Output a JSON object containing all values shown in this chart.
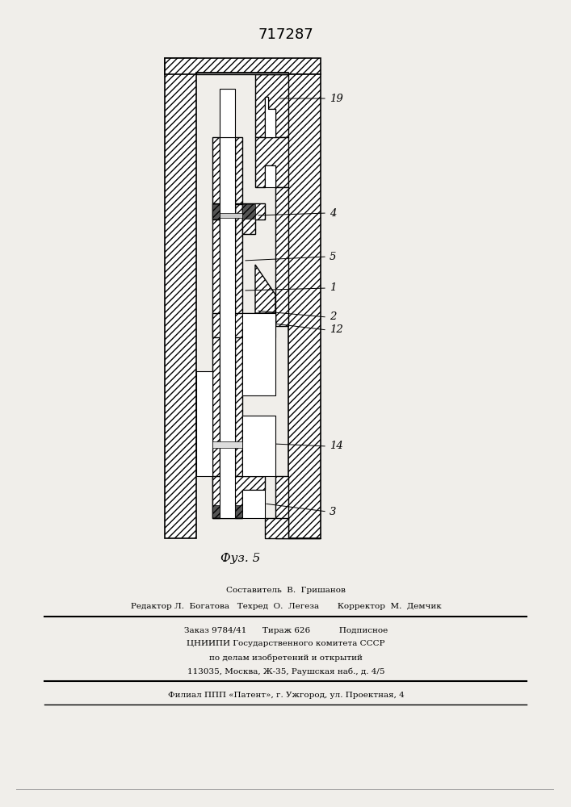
{
  "title": "717287",
  "fig_label": "Фуз. 5",
  "label_19": "19",
  "label_4": "4",
  "label_5": "5",
  "label_1": "1",
  "label_2": "2",
  "label_12": "12",
  "label_14": "14",
  "label_3": "3",
  "footer_line1": "Составитель  В.  Гришанов",
  "footer_line2": "Редактор Л.  Богатова   Техред  О.  Легеза       Корректор  М.  Демчик",
  "footer_line3": "Заказ 9784/41      Тираж 626           Подписное",
  "footer_line4": "ЦНИИПИ Государственного комитета СССР",
  "footer_line5": "по делам изобретений и открытий",
  "footer_line6": "113035, Москва, Ж-35, Раушская наб., д. 4/5",
  "footer_line7": "Филиал ППП «Патент», г. Ужгород, ул. Проектная, 4",
  "bg_color": "#f0eeea",
  "hatch_density": 4
}
